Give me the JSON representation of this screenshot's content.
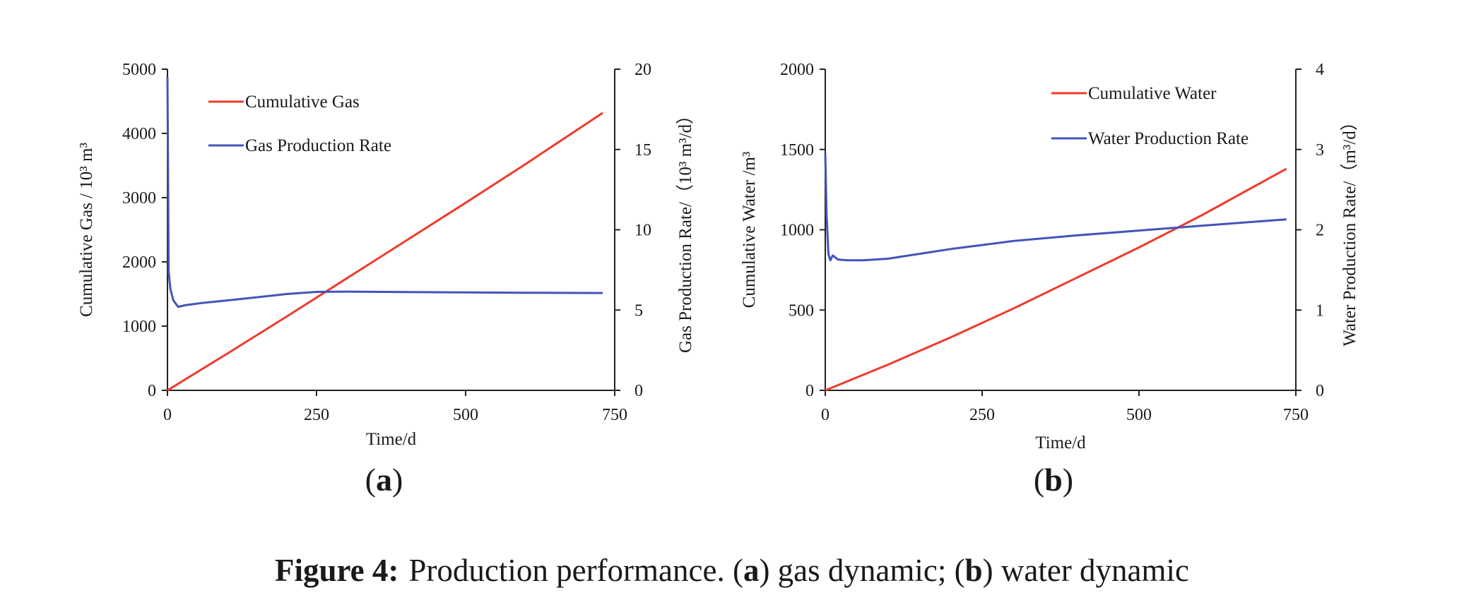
{
  "chart_data": [
    {
      "panel": "a",
      "panel_label": "(a)",
      "type": "line",
      "xlabel": "Time/d",
      "x_ticks": [
        "0",
        "250",
        "500",
        "750"
      ],
      "xlim": [
        0,
        750
      ],
      "left_axis": {
        "label": "Cumulative Gas / 10³ m³",
        "ylim": [
          0,
          5000
        ],
        "ticks": [
          "0",
          "1000",
          "2000",
          "3000",
          "4000",
          "5000"
        ]
      },
      "right_axis": {
        "label": "Gas Production Rate/（10³ m³/d）",
        "ylim": [
          0,
          20
        ],
        "ticks": [
          "0",
          "5",
          "10",
          "15",
          "20"
        ]
      },
      "legend": [
        "Cumulative Gas",
        "Gas Production Rate"
      ],
      "legend_position": "top-left",
      "series": [
        {
          "name": "Cumulative Gas",
          "axis": "left",
          "color": "#ee3b2b",
          "x": [
            0,
            100,
            200,
            300,
            400,
            500,
            600,
            730
          ],
          "y": [
            0,
            570,
            1150,
            1740,
            2330,
            2920,
            3520,
            4320
          ]
        },
        {
          "name": "Gas Production Rate",
          "axis": "right",
          "color": "#4454b8",
          "x": [
            0,
            2,
            5,
            10,
            18,
            30,
            60,
            100,
            150,
            200,
            250,
            300,
            400,
            500,
            600,
            730
          ],
          "y": [
            19.5,
            7.4,
            6.3,
            5.6,
            5.2,
            5.3,
            5.45,
            5.6,
            5.8,
            6.0,
            6.13,
            6.15,
            6.12,
            6.1,
            6.08,
            6.06
          ]
        }
      ]
    },
    {
      "panel": "b",
      "panel_label": "(b)",
      "type": "line",
      "xlabel": "Time/d",
      "x_ticks": [
        "0",
        "250",
        "500",
        "750"
      ],
      "xlim": [
        0,
        750
      ],
      "left_axis": {
        "label": "Cumulative Water /m³",
        "ylim": [
          0,
          2000
        ],
        "ticks": [
          "0",
          "500",
          "1000",
          "1500",
          "2000"
        ]
      },
      "right_axis": {
        "label": "Water Production Rate/（m³/d）",
        "ylim": [
          0,
          4
        ],
        "ticks": [
          "0",
          "1",
          "2",
          "3",
          "4"
        ]
      },
      "legend": [
        "Cumulative Water",
        "Water Production Rate"
      ],
      "legend_position": "top-right",
      "series": [
        {
          "name": "Cumulative Water",
          "axis": "left",
          "color": "#ee3b2b",
          "x": [
            0,
            100,
            200,
            300,
            400,
            500,
            600,
            735
          ],
          "y": [
            0,
            160,
            330,
            510,
            700,
            890,
            1090,
            1380
          ]
        },
        {
          "name": "Water Production Rate",
          "axis": "right",
          "color": "#4454b8",
          "x": [
            0,
            2,
            5,
            8,
            12,
            20,
            35,
            60,
            100,
            150,
            200,
            250,
            300,
            400,
            500,
            600,
            735
          ],
          "y": [
            2.95,
            2.2,
            1.7,
            1.62,
            1.68,
            1.63,
            1.62,
            1.62,
            1.64,
            1.7,
            1.76,
            1.81,
            1.86,
            1.93,
            1.99,
            2.05,
            2.13
          ]
        }
      ]
    }
  ],
  "caption": {
    "prefix": "Figure 4:",
    "text1": "Production performance. (",
    "a": "a",
    "text2": ") gas dynamic; (",
    "b": "b",
    "text3": ") water dynamic"
  }
}
